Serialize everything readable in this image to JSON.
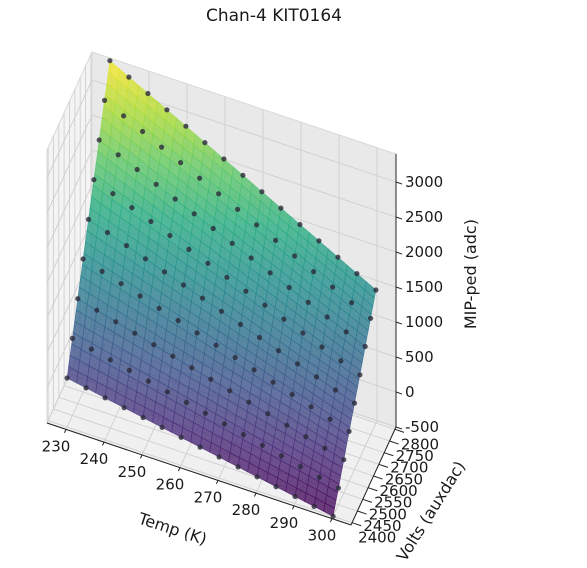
{
  "chart_data": {
    "type": "surface3d",
    "title": "Chan-4   KIT0164",
    "xlabel": "Temp (K)",
    "ylabel": "Volts (auxdac)",
    "zlabel": "MIP-ped (adc)",
    "xlim": [
      225,
      305
    ],
    "ylim": [
      2390,
      2810
    ],
    "zlim": [
      -500,
      3400
    ],
    "xticks": [
      230,
      240,
      250,
      260,
      270,
      280,
      290,
      300
    ],
    "yticks": [
      2400,
      2450,
      2500,
      2550,
      2600,
      2650,
      2700,
      2750,
      2800
    ],
    "zticks": [
      -500,
      0,
      500,
      1000,
      1500,
      2000,
      2500,
      3000
    ],
    "grid": true,
    "colormap": "viridis",
    "surface_corners": [
      {
        "temp": 230,
        "volts": 2400,
        "adc": 200
      },
      {
        "temp": 300,
        "volts": 2400,
        "adc": -500
      },
      {
        "temp": 230,
        "volts": 2800,
        "adc": 3400
      },
      {
        "temp": 300,
        "volts": 2800,
        "adc": 1400
      }
    ],
    "points": {
      "temp": [
        230,
        235,
        240,
        245,
        250,
        255,
        260,
        265,
        270,
        275,
        280,
        285,
        290,
        295,
        300
      ],
      "volts": [
        2400,
        2450,
        2500,
        2550,
        2600,
        2650,
        2700,
        2750,
        2800
      ],
      "color": "#2a2a3a"
    }
  }
}
